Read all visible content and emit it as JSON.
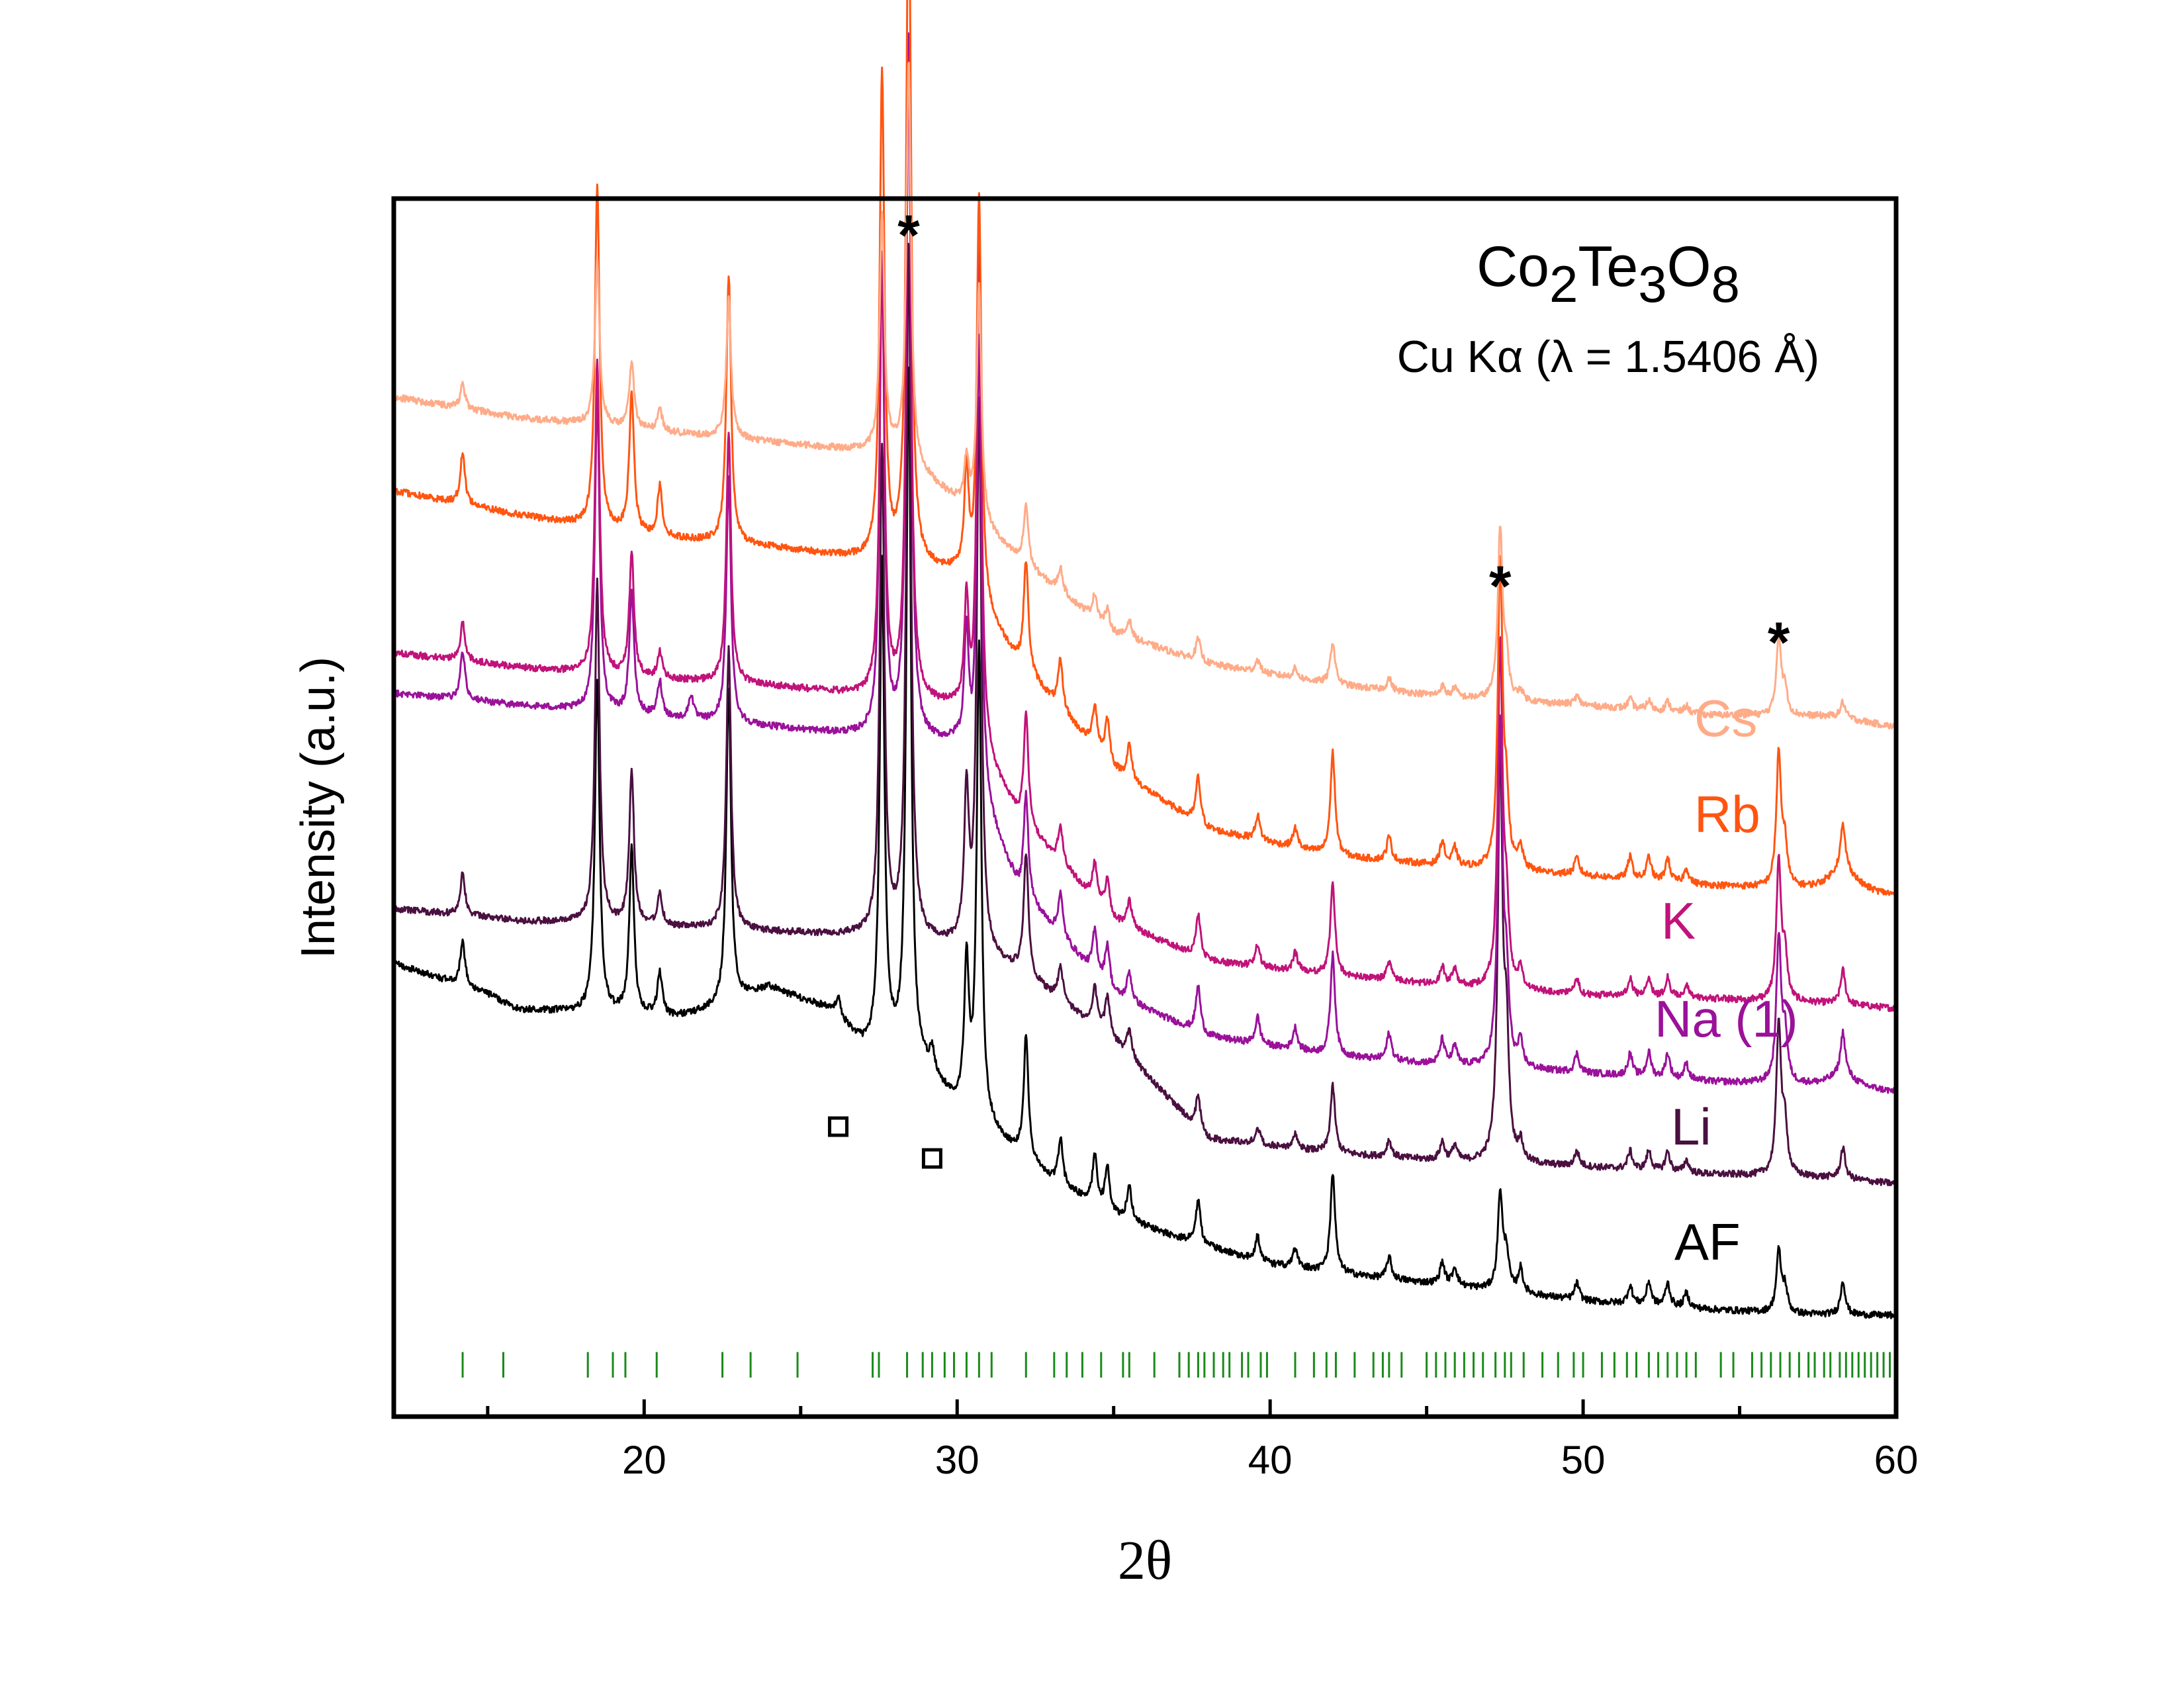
{
  "chart_data": {
    "type": "line",
    "title_main": "Co",
    "title_sub1": "2",
    "title_mid": "Te",
    "title_sub2": "3",
    "title_end": "O",
    "title_sub3": "8",
    "subtitle": "Cu Kα (λ = 1.5406 Å)",
    "xlabel": "2θ",
    "ylabel": "Intensity (a.u.)",
    "xlim": [
      12,
      60
    ],
    "ylim": [
      0,
      100
    ],
    "xticks": [
      20,
      30,
      40,
      50,
      60
    ],
    "xticks_minor": [
      15,
      25,
      35,
      45,
      55
    ],
    "grid": false,
    "legend": "inline labels at right of each trace",
    "series": [
      {
        "name": "AF",
        "color": "#000000",
        "y_at_x": [
          [
            12,
            37.2
          ],
          [
            15,
            34.7
          ],
          [
            16,
            33.4
          ],
          [
            18,
            33.2
          ],
          [
            21,
            32.8
          ],
          [
            22,
            33.3
          ],
          [
            24,
            35.2
          ],
          [
            26,
            33.3
          ],
          [
            27,
            30.3
          ],
          [
            28,
            29.7
          ],
          [
            29,
            28.3
          ],
          [
            30,
            25.4
          ],
          [
            31,
            23.5
          ],
          [
            33,
            19.4
          ],
          [
            35,
            16.5
          ],
          [
            37,
            14.7
          ],
          [
            40,
            12.5
          ],
          [
            43,
            11.5
          ],
          [
            46,
            10.7
          ],
          [
            50,
            9.5
          ],
          [
            54,
            8.8
          ],
          [
            57,
            8.4
          ],
          [
            60,
            8.3
          ]
        ]
      },
      {
        "name": "Li",
        "color": "#4a1040",
        "y_at_x": [
          [
            12,
            41.7
          ],
          [
            16,
            40.7
          ],
          [
            20,
            40.3
          ],
          [
            24,
            39.8
          ],
          [
            28,
            39.3
          ],
          [
            30,
            38.6
          ],
          [
            32,
            36.5
          ],
          [
            35,
            30.8
          ],
          [
            38,
            22.8
          ],
          [
            42,
            21.6
          ],
          [
            46,
            20.9
          ],
          [
            50,
            20.5
          ],
          [
            54,
            19.9
          ],
          [
            58,
            19.6
          ],
          [
            60,
            19.1
          ]
        ]
      },
      {
        "name": "Na (1)",
        "color": "#9a119a",
        "y_at_x": [
          [
            12,
            59.4
          ],
          [
            16,
            58.4
          ],
          [
            20,
            57.5
          ],
          [
            24,
            56.6
          ],
          [
            28,
            55.6
          ],
          [
            30,
            55.1
          ],
          [
            32,
            43.0
          ],
          [
            35,
            34.6
          ],
          [
            38,
            31.2
          ],
          [
            42,
            29.6
          ],
          [
            46,
            28.8
          ],
          [
            50,
            28.2
          ],
          [
            54,
            27.5
          ],
          [
            58,
            27.1
          ],
          [
            60,
            26.6
          ]
        ]
      },
      {
        "name": "K",
        "color": "#c0137a",
        "y_at_x": [
          [
            12,
            62.7
          ],
          [
            16,
            61.5
          ],
          [
            20,
            60.6
          ],
          [
            24,
            60.0
          ],
          [
            28,
            58.9
          ],
          [
            30,
            58.1
          ],
          [
            32,
            49.0
          ],
          [
            35,
            40.7
          ],
          [
            38,
            37.4
          ],
          [
            42,
            36.2
          ],
          [
            46,
            35.3
          ],
          [
            50,
            34.6
          ],
          [
            54,
            34.3
          ],
          [
            58,
            33.9
          ],
          [
            60,
            33.5
          ]
        ]
      },
      {
        "name": "Rb",
        "color": "#ff5511",
        "y_at_x": [
          [
            12,
            76.0
          ],
          [
            16,
            74.0
          ],
          [
            20,
            72.3
          ],
          [
            24,
            71.4
          ],
          [
            28,
            70.0
          ],
          [
            30,
            69.2
          ],
          [
            32,
            61.7
          ],
          [
            35,
            53.1
          ],
          [
            38,
            48.2
          ],
          [
            42,
            46.0
          ],
          [
            46,
            45.1
          ],
          [
            50,
            44.4
          ],
          [
            54,
            43.6
          ],
          [
            58,
            43.1
          ],
          [
            60,
            42.7
          ]
        ]
      },
      {
        "name": "Cs",
        "color": "#ffab88",
        "y_at_x": [
          [
            12,
            83.7
          ],
          [
            16,
            82.0
          ],
          [
            20,
            81.0
          ],
          [
            24,
            80.0
          ],
          [
            28,
            79.0
          ],
          [
            30,
            75.1
          ],
          [
            32,
            70.2
          ],
          [
            35,
            64.3
          ],
          [
            38,
            61.8
          ],
          [
            42,
            60.1
          ],
          [
            46,
            59.0
          ],
          [
            50,
            58.4
          ],
          [
            54,
            57.6
          ],
          [
            58,
            57.5
          ],
          [
            60,
            56.6
          ]
        ]
      }
    ],
    "peaks": [
      {
        "x": 14.2,
        "h": [
          3.7,
          3.5,
          4.0,
          3.2,
          4.2,
          2.0
        ]
      },
      {
        "x": 18.5,
        "h": [
          27.5,
          28.0,
          26.0,
          25.8,
          28.0,
          13.5
        ]
      },
      {
        "x": 19.6,
        "h": [
          13.5,
          12.5,
          10.0,
          10.0,
          11.5,
          5.5
        ]
      },
      {
        "x": 20.5,
        "h": [
          3.5,
          2.6,
          2.9,
          2.1,
          4.1,
          1.8
        ]
      },
      {
        "x": 21.5,
        "h": [
          0,
          0,
          2.0,
          0,
          0,
          0
        ]
      },
      {
        "x": 22.7,
        "h": [
          26.0,
          23.0,
          20.0,
          20.5,
          22.0,
          11.5
        ]
      },
      {
        "x": 26.2,
        "h": [
          1.5,
          0,
          0,
          0,
          0,
          0
        ]
      },
      {
        "x": 27.6,
        "h": [
          40.0,
          40.0,
          39.0,
          36.0,
          40.0,
          19.5
        ]
      },
      {
        "x": 28.45,
        "h": [
          57.0,
          57.0,
          58.0,
          53.0,
          58.0,
          33.0
        ]
      },
      {
        "x": 29.2,
        "h": [
          1.8,
          0,
          0,
          0,
          0,
          0
        ]
      },
      {
        "x": 30.3,
        "h": [
          12.0,
          12.5,
          10.5,
          9.5,
          9.0,
          4.0
        ]
      },
      {
        "x": 30.7,
        "h": [
          39.0,
          45.0,
          37.5,
          40.5,
          33.0,
          19.5
        ]
      },
      {
        "x": 32.2,
        "h": [
          10.0,
          10.0,
          8.5,
          9.0,
          9.0,
          5.0
        ]
      },
      {
        "x": 33.3,
        "h": [
          3.7,
          3.0,
          3.5,
          3.0,
          4.0,
          2.0
        ]
      },
      {
        "x": 34.4,
        "h": [
          4.0,
          3.2,
          3.5,
          3.0,
          3.5,
          2.0
        ]
      },
      {
        "x": 34.8,
        "h": [
          3.5,
          3.2,
          3.5,
          2.7,
          3.5,
          1.5
        ]
      },
      {
        "x": 35.5,
        "h": [
          2.8,
          2.3,
          2.4,
          2.2,
          2.8,
          1.5
        ]
      },
      {
        "x": 37.7,
        "h": [
          3.5,
          2.7,
          3.8,
          3.5,
          3.8,
          1.8
        ]
      },
      {
        "x": 39.6,
        "h": [
          2.0,
          1.5,
          2.2,
          1.8,
          2.0,
          1.0
        ]
      },
      {
        "x": 40.8,
        "h": [
          1.5,
          1.2,
          1.8,
          1.5,
          1.6,
          0.8
        ]
      },
      {
        "x": 42.0,
        "h": [
          8.0,
          5.5,
          8.3,
          7.5,
          8.5,
          3.5
        ]
      },
      {
        "x": 43.8,
        "h": [
          1.8,
          1.4,
          2.2,
          1.5,
          2.0,
          1.0
        ]
      },
      {
        "x": 45.5,
        "h": [
          1.8,
          1.5,
          2.0,
          1.5,
          2.0,
          0.8
        ]
      },
      {
        "x": 45.9,
        "h": [
          1.5,
          1.3,
          1.5,
          1.3,
          1.5,
          0.8
        ]
      },
      {
        "x": 47.35,
        "h": [
          8.0,
          33.0,
          28.0,
          28.0,
          25.0,
          14.0
        ]
      },
      {
        "x": 47.55,
        "h": [
          3.0,
          9.5,
          6.5,
          6.0,
          5.0,
          3.0
        ]
      },
      {
        "x": 48.0,
        "h": [
          2.0,
          1.5,
          2.0,
          1.5,
          1.8,
          0.8
        ]
      },
      {
        "x": 49.8,
        "h": [
          1.4,
          1.2,
          1.5,
          1.2,
          1.4,
          0.7
        ]
      },
      {
        "x": 51.5,
        "h": [
          1.5,
          1.5,
          1.8,
          1.5,
          1.8,
          0.8
        ]
      },
      {
        "x": 52.1,
        "h": [
          1.9,
          1.6,
          2.0,
          1.6,
          1.9,
          0.8
        ]
      },
      {
        "x": 52.7,
        "h": [
          1.9,
          1.6,
          2.0,
          1.6,
          1.9,
          0.8
        ]
      },
      {
        "x": 53.3,
        "h": [
          1.2,
          1.0,
          1.3,
          1.0,
          1.2,
          0.6
        ]
      },
      {
        "x": 56.25,
        "h": [
          5.0,
          12.5,
          12.0,
          11.5,
          11.0,
          6.5
        ]
      },
      {
        "x": 56.45,
        "h": [
          2.0,
          4.0,
          3.8,
          3.5,
          3.2,
          2.0
        ]
      },
      {
        "x": 58.3,
        "h": [
          2.8,
          2.5,
          3.5,
          2.8,
          3.5,
          1.3
        ]
      }
    ],
    "broad_peaks": [
      {
        "x": 58.3,
        "w": 0.5,
        "h": [
          0,
          0,
          1.0,
          0,
          2.0,
          0
        ]
      }
    ],
    "reference_ticks": [
      14.2,
      15.5,
      18.2,
      19.0,
      19.4,
      20.4,
      22.5,
      23.4,
      24.9,
      27.3,
      27.5,
      28.4,
      28.9,
      29.2,
      29.6,
      29.9,
      30.3,
      30.7,
      31.1,
      32.2,
      33.1,
      33.5,
      34.0,
      34.6,
      35.3,
      35.5,
      36.3,
      37.1,
      37.4,
      37.7,
      37.9,
      38.2,
      38.5,
      38.7,
      39.1,
      39.3,
      39.7,
      39.9,
      40.8,
      41.4,
      41.8,
      42.1,
      42.7,
      43.3,
      43.6,
      43.8,
      44.2,
      45.0,
      45.3,
      45.6,
      45.9,
      46.2,
      46.5,
      46.8,
      47.2,
      47.5,
      47.7,
      48.1,
      48.7,
      49.2,
      49.7,
      50.0,
      50.6,
      51.0,
      51.4,
      51.7,
      52.1,
      52.4,
      52.7,
      53.0,
      53.3,
      53.6,
      54.4,
      54.8,
      55.4,
      55.7,
      56.0,
      56.3,
      56.6,
      56.9,
      57.2,
      57.4,
      57.7,
      57.9,
      58.2,
      58.4,
      58.6,
      58.8,
      59.0,
      59.2,
      59.4,
      59.6,
      59.8
    ],
    "reference_color": "#1a8a1a",
    "star_annotations": [
      {
        "x": 28.45,
        "label": "*"
      },
      {
        "x": 47.35,
        "label": "*"
      },
      {
        "x": 56.25,
        "label": "*"
      }
    ],
    "impurity_markers": [
      {
        "x": 26.2
      },
      {
        "x": 29.2
      }
    ]
  }
}
